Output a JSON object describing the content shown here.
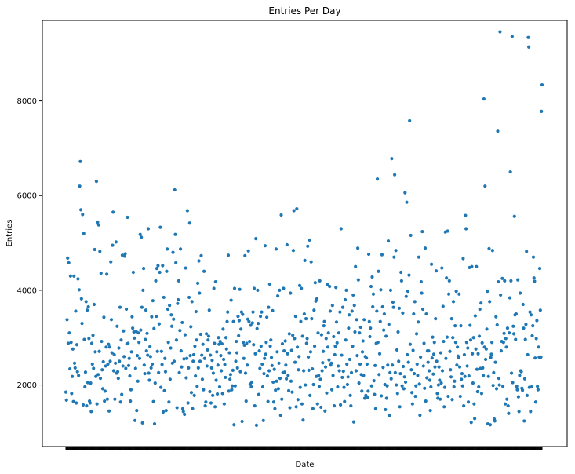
{
  "chart_data": {
    "type": "scatter",
    "title": "Entries Per Day",
    "xlabel": "Date",
    "ylabel": "Entries",
    "ylim": [
      700,
      9700
    ],
    "yticks": [
      2000,
      4000,
      6000,
      8000
    ],
    "grid": false,
    "color": "#1f77b4",
    "series": [
      {
        "values": [
          1850,
          1680,
          3380,
          4680,
          2880,
          4580,
          3100,
          2340,
          4300,
          2900,
          1820,
          2180,
          2760,
          1650,
          4300,
          2460,
          2360,
          3560,
          1620,
          2850,
          2280,
          4240,
          2200,
          4010,
          6200,
          6720,
          5700,
          3820,
          3300,
          5600,
          1580,
          5200,
          2960,
          1960,
          2270,
          3760,
          1560,
          3580,
          2050,
          3650,
          2980,
          1660,
          1620,
          2040,
          1440,
          2880,
          2440,
          3050,
          2350,
          3700,
          4860,
          2700,
          2180,
          6300,
          1600,
          5440,
          2220,
          5380,
          2710,
          4820,
          2140,
          4360,
          2920,
          2320,
          1920,
          2490,
          3430,
          1660,
          1870,
          2400,
          2800,
          4340,
          1700,
          2440,
          2860,
          1450,
          2800,
          2500,
          4600,
          3380,
          2680,
          4950,
          5650,
          2300,
          2640,
          1700,
          2460,
          5020,
          2250,
          3240,
          2280,
          2140,
          2780,
          2500,
          3640,
          1640,
          2950,
          1800,
          4740,
          2400,
          3140,
          2600,
          4720,
          4770,
          2350,
          3600,
          2870,
          5540,
          2880,
          2410,
          2560,
          2190,
          1660,
          1900,
          2700,
          3440,
          3200,
          4380,
          3120,
          2990,
          1250,
          2350,
          3130,
          1460,
          2620,
          2080,
          3100,
          2900,
          2560,
          5180,
          3160,
          5120,
          3640,
          1200,
          4000,
          4460,
          2420,
          2240,
          2960,
          3580,
          2720,
          3090,
          2630,
          5300,
          2250,
          2100,
          2810,
          2600,
          2360,
          3440,
          2440,
          3780,
          1650,
          3190,
          1180,
          2040,
          4200,
          3450,
          4460,
          2710,
          4520,
          2260,
          3290,
          4380,
          5330,
          1950,
          2710,
          2430,
          4520,
          1430,
          3850,
          1880,
          2560,
          2280,
          1460,
          4400,
          4870,
          3600,
          2900,
          1640,
          3680,
          2120,
          2780,
          3480,
          3240,
          2460,
          4800,
          3390,
          2500,
          6120,
          5180,
          4580,
          2950,
          1520,
          3720,
          3800,
          4200,
          2260,
          3150,
          4870,
          2720,
          2380,
          3320,
          1500,
          1440,
          2550,
          1380,
          3060,
          4470,
          2150,
          2560,
          5680,
          1620,
          2360,
          3850,
          5420,
          2620,
          3230,
          1840,
          3760,
          1500,
          2500,
          2640,
          1780,
          2820,
          2190,
          3550,
          2950,
          1970,
          4150,
          2360,
          4620,
          3940,
          2500,
          3070,
          4730,
          2630,
          2120,
          2860,
          1900,
          4400,
          2560,
          1560,
          1640,
          3080,
          2400,
          2740,
          2950,
          3030,
          3580,
          1860,
          2630,
          1620,
          2360,
          2520,
          1780,
          2250,
          4040,
          2880,
          1540,
          4180,
          2100,
          2700,
          1810,
          2420,
          3000,
          2860,
          1960,
          2920,
          2620,
          2300,
          2870,
          1820,
          3180,
          2540,
          1600,
          2430,
          2160,
          3000,
          2760,
          3340,
          3540,
          4740,
          1870,
          2680,
          2120,
          2220,
          3790,
          1900,
          1980,
          2310,
          3340,
          1160,
          4040,
          1980,
          2500,
          2920,
          2680,
          2360,
          3450,
          3040,
          3360,
          4020,
          2280,
          3180,
          3540,
          1230,
          3490,
          2900,
          2560,
          2840,
          4730,
          2250,
          1660,
          2880,
          2420,
          3390,
          4830,
          3340,
          2920,
          2020,
          3260,
          1960,
          2060,
          3310,
          3540,
          2850,
          4040,
          1560,
          2660,
          5090,
          1150,
          3190,
          4000,
          3300,
          1800,
          2720,
          2350,
          3450,
          2820,
          3540,
          2440,
          1960,
          1250,
          2240,
          2560,
          4940,
          2650,
          2900,
          3430,
          2190,
          1650,
          3640,
          2300,
          4130,
          2820,
          2950,
          2580,
          2410,
          3570,
          2060,
          1640,
          2330,
          1500,
          1890,
          4870,
          2080,
          2700,
          3880,
          1920,
          2460,
          4000,
          2140,
          1360,
          5590,
          1700,
          2870,
          2260,
          4040,
          2720,
          2270,
          2930,
          2420,
          2130,
          4960,
          2660,
          2200,
          1880,
          3080,
          1520,
          3940,
          2080,
          2730,
          1850,
          3050,
          4840,
          5680,
          2980,
          2480,
          3450,
          1540,
          5720,
          2800,
          1690,
          2320,
          2600,
          4100,
          1950,
          3340,
          4040,
          1600,
          3030,
          1260,
          2300,
          3500,
          4630,
          2000,
          3400,
          2880,
          2980,
          4930,
          2590,
          2310,
          5060,
          1780,
          2700,
          4600,
          3400,
          2340,
          1500,
          2010,
          3580,
          2820,
          4160,
          3770,
          2180,
          3820,
          1600,
          3100,
          2200,
          1970,
          4200,
          2120,
          1530,
          3060,
          2300,
          2470,
          2710,
          3250,
          3340,
          1450,
          2380,
          2980,
          1830,
          4120,
          2800,
          3100,
          2530,
          4080,
          3560,
          2420,
          2460,
          1900,
          3680,
          2200,
          3020,
          1560,
          2640,
          2820,
          4060,
          3330,
          2890,
          1960,
          2400,
          3100,
          2300,
          3540,
          1580,
          5300,
          2630,
          2160,
          3640,
          2290,
          1950,
          1650,
          3800,
          2950,
          4000,
          2440,
          2010,
          2170,
          3200,
          3480,
          2540,
          1780,
          1560,
          2260,
          3560,
          2820,
          3900,
          1220,
          3680,
          3120,
          4500,
          2300,
          3380,
          2620,
          4890,
          4220,
          2040,
          3100,
          2440,
          3220,
          2220,
          1870,
          2700,
          2930,
          2200,
          3380,
          1720,
          2600,
          1780,
          2570,
          2440,
          1740,
          1870,
          4760,
          3340,
          3020,
          3200,
          4080,
          1980,
          4280,
          3650,
          3920,
          2090,
          1800,
          2410,
          1500,
          2880,
          3560,
          6350,
          2900,
          4400,
          2220,
          2660,
          3340,
          4010,
          1770,
          4750,
          3650,
          2370,
          3160,
          3500,
          2010,
          1480,
          3030,
          1720,
          1980,
          2420,
          5040,
          3280,
          1360,
          2260,
          4000,
          2130,
          6780,
          2420,
          3750,
          3640,
          4700,
          6440,
          2260,
          4840,
          2000,
          2740,
          1820,
          3120,
          2500,
          3620,
          1540,
          2240,
          4380,
          4200,
          1980,
          3520,
          2390,
          1920,
          2170,
          6060,
          2060,
          3870,
          5860,
          2640,
          3980,
          2480,
          4320,
          7580,
          2860,
          5160,
          2320,
          1840,
          1600,
          2730,
          3500,
          2240,
          3760,
          1760,
          1980,
          3080,
          2440,
          2200,
          3330,
          4700,
          2020,
          1360,
          2590,
          4180,
          3940,
          5240,
          3600,
          2400,
          2880,
          1930,
          4890,
          1660,
          3500,
          2150,
          2720,
          2480,
          2720,
          2300,
          2100,
          1460,
          1960,
          4550,
          2570,
          3010,
          2230,
          2650,
          2900,
          2380,
          3400,
          4410,
          2500,
          1820,
          1720,
          2000,
          2380,
          2100,
          1700,
          2680,
          2040,
          4470,
          2300,
          3660,
          2920,
          1540,
          1950,
          5230,
          2560,
          4260,
          3010,
          5250,
          1760,
          3920,
          4200,
          2710,
          2320,
          2170,
          3400,
          1690,
          3000,
          3760,
          1960,
          2080,
          3250,
          2900,
          3980,
          2420,
          2800,
          2610,
          2580,
          3920,
          2380,
          1760,
          3250,
          2120,
          2240,
          1980,
          4670,
          1560,
          2640,
          2180,
          5580,
          5300,
          2900,
          2400,
          2780,
          1640,
          2190,
          4480,
          3260,
          2950,
          1210,
          4500,
          2660,
          2040,
          3000,
          1600,
          1290,
          3460,
          2760,
          4500,
          2330,
          1860,
          2660,
          1960,
          3030,
          3600,
          2350,
          3730,
          1820,
          2890,
          2360,
          2200,
          8040,
          2800,
          6200,
          2540,
          2760,
          3180,
          3980,
          1180,
          2180,
          4880,
          3760,
          1160,
          2580,
          2650,
          2900,
          4840,
          1990,
          2260,
          1280,
          1240,
          2480,
          3440,
          1920,
          3270,
          7360,
          4180,
          2140,
          2000,
          9460,
          3900,
          2720,
          2920,
          4250,
          1970,
          2900,
          3090,
          4200,
          1600,
          2980,
          2800,
          1700,
          3200,
          1560,
          1400,
          3100,
          3840,
          6500,
          4200,
          2250,
          9360,
          2050,
          3240,
          3080,
          5560,
          3480,
          2960,
          3500,
          1970,
          1900,
          4220,
          1750,
          1440,
          2200,
          3940,
          2300,
          2280,
          1930,
          1890,
          3700,
          3200,
          1240,
          2130,
          2960,
          3280,
          4820,
          1780,
          2640,
          9340,
          9140,
          1950,
          3540,
          1440,
          3480,
          1960,
          3040,
          3250,
          4700,
          4260,
          4190,
          2570,
          1640,
          2980,
          3360,
          1970,
          1900,
          2800,
          2590,
          4460,
          3580,
          2590,
          7780,
          8340
        ]
      }
    ]
  }
}
